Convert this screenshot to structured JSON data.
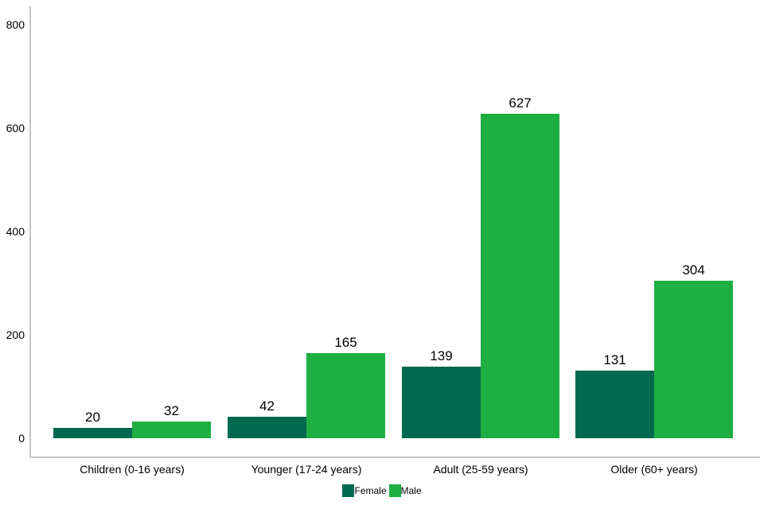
{
  "chart_data": {
    "type": "bar",
    "title": "",
    "categories": [
      "Children (0-16 years)",
      "Younger (17-24 years)",
      "Adult (25-59 years)",
      "Older (60+ years)"
    ],
    "series": [
      {
        "name": "Female",
        "color": "#026951",
        "values": [
          20,
          42,
          139,
          131
        ]
      },
      {
        "name": "Male",
        "color": "#1FAE42",
        "values": [
          32,
          165,
          627,
          304
        ]
      }
    ],
    "yticks": [
      0,
      200,
      400,
      600,
      800
    ],
    "ylim": [
      0,
      800
    ],
    "grid": false,
    "legend_position": "bottom",
    "value_labels": true
  },
  "colors": {
    "axis_line": "#C4C4C4",
    "text": "#000000",
    "background": "#FFFFFF"
  }
}
